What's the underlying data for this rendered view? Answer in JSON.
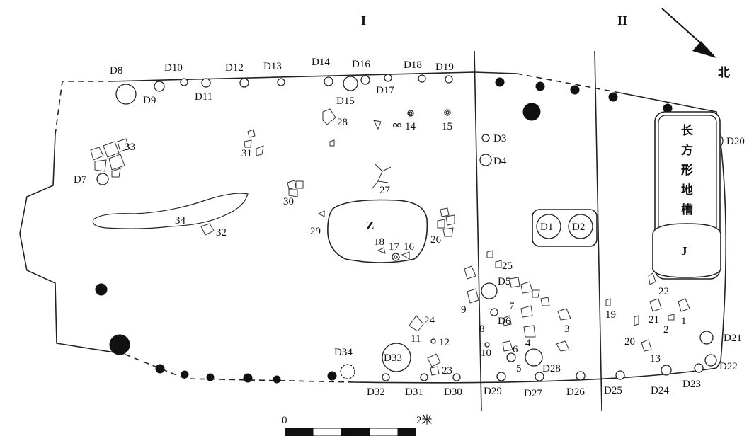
{
  "sections": {
    "I": "I",
    "II": "II"
  },
  "north": "北",
  "scale": {
    "start": "0",
    "end": "2米"
  },
  "features": {
    "Z": "Z",
    "J": "J",
    "trench": [
      "长",
      "方",
      "形",
      "地",
      "槽"
    ],
    "D1": "D1",
    "D2": "D2"
  },
  "postholes": {
    "D3": "D3",
    "D4": "D4",
    "D5": "D5",
    "D6": "D6",
    "D7": "D7",
    "D8": "D8",
    "D9": "D9",
    "D10": "D10",
    "D11": "D11",
    "D12": "D12",
    "D13": "D13",
    "D14": "D14",
    "D15": "D15",
    "D16": "D16",
    "D17": "D17",
    "D18": "D18",
    "D19": "D19",
    "D20": "D20",
    "D21": "D21",
    "D22": "D22",
    "D23": "D23",
    "D24": "D24",
    "D25": "D25",
    "D26": "D26",
    "D27": "D27",
    "D28": "D28",
    "D29": "D29",
    "D30": "D30",
    "D31": "D31",
    "D32": "D32",
    "D33": "D33",
    "D34": "D34"
  },
  "artifacts": {
    "n1": "1",
    "n2": "2",
    "n3": "3",
    "n4": "4",
    "n5": "5",
    "n6": "6",
    "n7": "7",
    "n8": "8",
    "n9": "9",
    "n10": "10",
    "n11": "11",
    "n12": "12",
    "n13": "13",
    "n14": "14",
    "n15": "15",
    "n16": "16",
    "n17": "17",
    "n18": "18",
    "n19": "19",
    "n20": "20",
    "n21": "21",
    "n22": "22",
    "n23": "23",
    "n24": "24",
    "n25": "25",
    "n26": "26",
    "n27": "27",
    "n28": "28",
    "n29": "29",
    "n30": "30",
    "n31": "31",
    "n32": "32",
    "n33": "33",
    "n34": "34"
  }
}
